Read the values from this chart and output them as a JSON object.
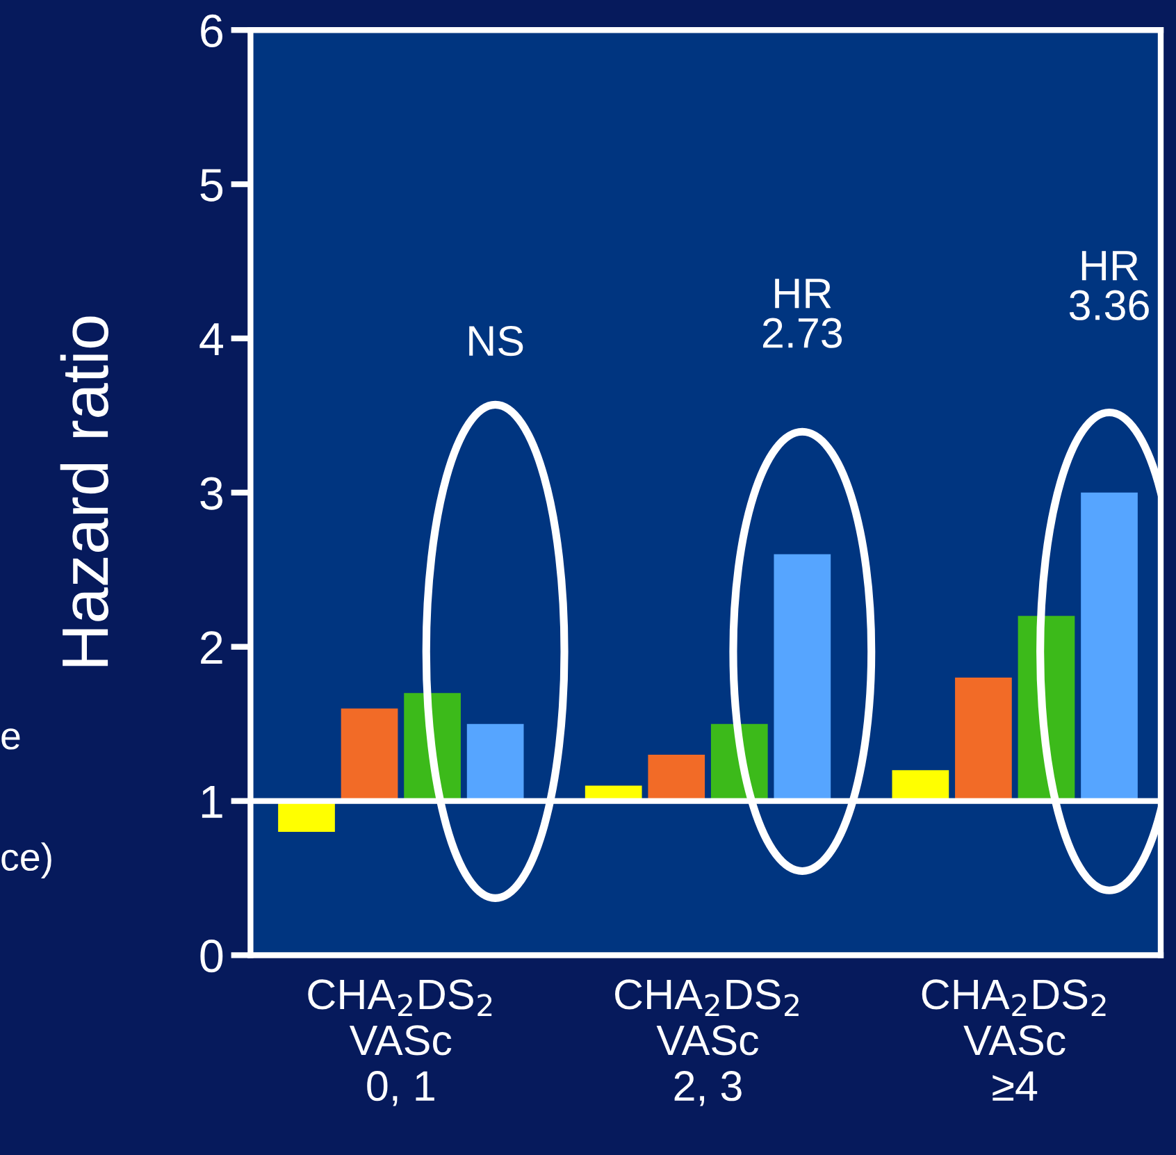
{
  "chart_data": {
    "type": "bar",
    "ylabel": "Hazard ratio",
    "categories": [
      "CHA$_{2}$DS$_{2}$\nVASc\n0, 1",
      "CHA$_{2}$DS$_{2}$\nVASc\n2, 3",
      "CHA$_{2}$DS$_{2}$\nVASc\n≥4"
    ],
    "series": [
      {
        "color": "#ffff00",
        "values": [
          -0.2,
          0.1,
          0.2
        ],
        "base": [
          1,
          1,
          1
        ]
      },
      {
        "color": "#f26b27",
        "values": [
          0.6,
          0.3,
          0.8
        ],
        "base": [
          1,
          1,
          1
        ]
      },
      {
        "color": "#3cba1a",
        "values": [
          0.7,
          0.5,
          1.2
        ],
        "base": [
          1,
          1,
          1
        ]
      },
      {
        "color": "#56a5ff",
        "values": [
          0.5,
          1.6,
          2.0
        ],
        "base": [
          1,
          1,
          1
        ]
      }
    ],
    "ylim": [
      0,
      6
    ],
    "yticks": [
      0,
      1,
      2,
      3,
      4,
      5,
      6
    ],
    "ref_lines": [
      {
        "axis": "y",
        "value": 1,
        "color": "#ffffff"
      }
    ],
    "annotations": [
      "NS",
      "HR\n2.73",
      "HR\n3.36",
      "e",
      "ce)"
    ],
    "grid": false
  }
}
